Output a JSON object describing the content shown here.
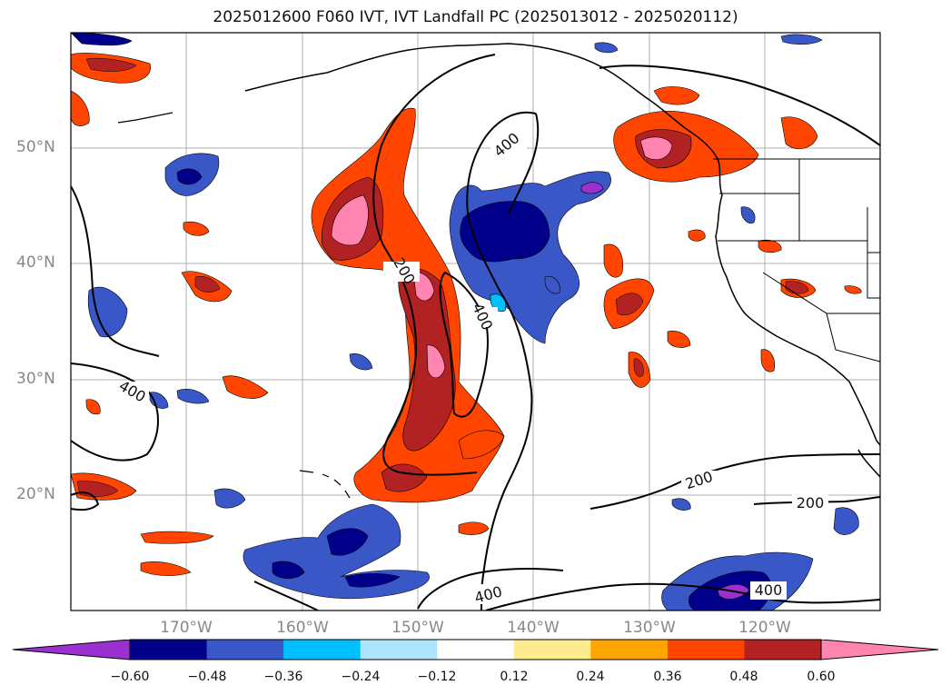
{
  "title": "2025012600 F060 IVT, IVT Landfall PC (2025013012 - 2025020112)",
  "lat_labels": [
    "50°N",
    "40°N",
    "30°N",
    "20°N"
  ],
  "lon_labels": [
    "170°W",
    "160°W",
    "150°W",
    "140°W",
    "130°W",
    "120°W"
  ],
  "contour_labels": [
    "400",
    "200",
    "400",
    "400",
    "200",
    "200",
    "400",
    "400"
  ],
  "colorbar": {
    "ticks": [
      "−0.60",
      "−0.48",
      "−0.36",
      "−0.24",
      "−0.12",
      "0.12",
      "0.24",
      "0.36",
      "0.48",
      "0.60"
    ],
    "colors": [
      "#9b30d0",
      "#00008b",
      "#3a57c8",
      "#00bfff",
      "#aee4fb",
      "#ffffff",
      "#fdeb8f",
      "#ffa500",
      "#ff4500",
      "#b22222",
      "#ff85b0"
    ]
  },
  "map": {
    "region": "North Pacific and western North America",
    "lat_range": [
      10,
      60
    ],
    "lon_range": [
      -180,
      -110
    ]
  }
}
